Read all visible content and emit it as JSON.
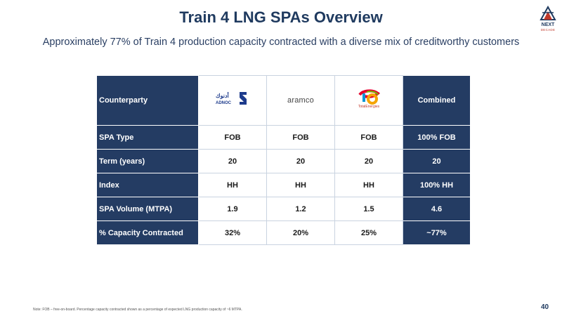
{
  "header": {
    "title": "Train 4 LNG SPAs Overview",
    "subtitle": "Approximately 77% of Train 4 production capacity contracted with a diverse mix of creditworthy customers"
  },
  "brand": {
    "line1": "NEXT",
    "line2": "DECADE"
  },
  "table": {
    "header_label": "Counterparty",
    "combined_label": "Combined",
    "counterparties": [
      {
        "logo": "adnoc-logo",
        "logo_text": "ADNOC",
        "logo_arabic": "أدنوك"
      },
      {
        "logo": "aramco-logo",
        "logo_text": "aramco"
      },
      {
        "logo": "totalenergies-logo",
        "logo_text": "TotalEnergies"
      }
    ],
    "rows": [
      {
        "label": "SPA Type",
        "values": [
          "FOB",
          "FOB",
          "FOB"
        ],
        "combined": "100% FOB"
      },
      {
        "label": "Term (years)",
        "values": [
          "20",
          "20",
          "20"
        ],
        "combined": "20"
      },
      {
        "label": "Index",
        "values": [
          "HH",
          "HH",
          "HH"
        ],
        "combined": "100% HH"
      },
      {
        "label": "SPA Volume (MTPA)",
        "values": [
          "1.9",
          "1.2",
          "1.5"
        ],
        "combined": "4.6"
      },
      {
        "label": "% Capacity Contracted",
        "values": [
          "32%",
          "20%",
          "25%"
        ],
        "combined": "~77%"
      }
    ]
  },
  "footer": {
    "note": "Note: FOB – free-on-board. Percentage capacity contracted shown as a percentage of expected LNG production capacity of ~6 MTPA.",
    "page_number": "40"
  },
  "colors": {
    "navy": "#243c63",
    "title": "#1f3a5f",
    "accent_red": "#c0392b"
  }
}
